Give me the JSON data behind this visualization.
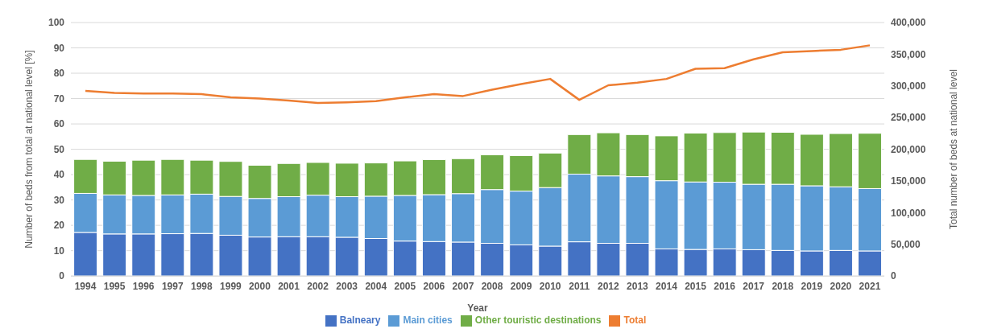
{
  "chart_data": {
    "type": "bar",
    "stacked": true,
    "xlabel": "Year",
    "ylabel": "Number of beds from total at national level [%]",
    "y2label": "Total number of beds at national level",
    "categories": [
      "1994",
      "1995",
      "1996",
      "1997",
      "1998",
      "1999",
      "2000",
      "2001",
      "2002",
      "2003",
      "2004",
      "2005",
      "2006",
      "2007",
      "2008",
      "2009",
      "2010",
      "2011",
      "2012",
      "2013",
      "2014",
      "2015",
      "2016",
      "2017",
      "2018",
      "2019",
      "2020",
      "2021"
    ],
    "series": [
      {
        "name": "Balneary",
        "color": "#4472c4",
        "values": [
          17.2,
          16.6,
          16.6,
          16.7,
          16.8,
          16.1,
          15.4,
          15.5,
          15.5,
          15.3,
          14.8,
          13.8,
          13.6,
          13.4,
          12.9,
          12.3,
          11.8,
          13.5,
          12.9,
          12.9,
          10.7,
          10.5,
          10.7,
          10.4,
          10.1,
          9.9,
          10.1,
          9.9
        ]
      },
      {
        "name": "Main cities",
        "color": "#5b9bd5",
        "values": [
          15.4,
          15.4,
          15.2,
          15.3,
          15.5,
          15.3,
          15.2,
          15.8,
          16.4,
          16.0,
          16.7,
          18.0,
          18.5,
          19.1,
          21.2,
          21.2,
          23.1,
          26.7,
          26.6,
          26.3,
          26.9,
          26.6,
          26.3,
          25.8,
          26.1,
          25.7,
          25.1,
          24.6
        ]
      },
      {
        "name": "Other touristic destinations",
        "color": "#70ad47",
        "values": [
          13.4,
          13.3,
          13.9,
          14.0,
          13.4,
          13.8,
          13.1,
          13.1,
          12.9,
          13.2,
          13.1,
          13.6,
          13.8,
          13.8,
          13.7,
          14.0,
          13.6,
          15.6,
          17.0,
          16.6,
          17.7,
          19.3,
          19.6,
          20.6,
          20.5,
          20.3,
          21.0,
          21.8
        ]
      },
      {
        "name": "Total",
        "type": "line",
        "axis": "y2",
        "color": "#ed7d31",
        "values": [
          292000,
          289000,
          288000,
          288000,
          287000,
          282000,
          280000,
          277000,
          273000,
          274000,
          276000,
          282000,
          287000,
          284000,
          294000,
          303000,
          311000,
          278000,
          301000,
          305000,
          311000,
          327000,
          328000,
          342000,
          353000,
          355000,
          357000,
          364000
        ]
      }
    ],
    "ylim": [
      0,
      100
    ],
    "yticks": [
      0,
      10,
      20,
      30,
      40,
      50,
      60,
      70,
      80,
      90,
      100
    ],
    "y2lim": [
      0,
      400000
    ],
    "y2ticks": [
      {
        "value": 0,
        "label": "0"
      },
      {
        "value": 50000,
        "label": "50,000"
      },
      {
        "value": 100000,
        "label": "100,000"
      },
      {
        "value": 150000,
        "label": "150,000"
      },
      {
        "value": 200000,
        "label": "200,000"
      },
      {
        "value": 250000,
        "label": "250,000"
      },
      {
        "value": 300000,
        "label": "300,000"
      },
      {
        "value": 350000,
        "label": "350,000"
      },
      {
        "value": 400000,
        "label": "400,000"
      }
    ],
    "grid": "y",
    "legend": "bottom",
    "marker": "none"
  }
}
